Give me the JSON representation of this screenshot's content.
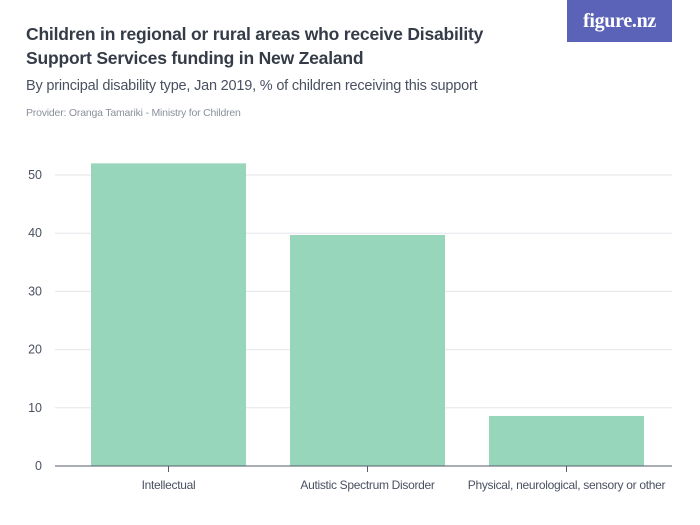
{
  "header": {
    "title": "Children in regional or rural areas who receive Disability Support Services funding in New Zealand",
    "subtitle": "By principal disability type, Jan 2019, % of children receiving this support",
    "provider": "Provider: Oranga Tamariki - Ministry for Children",
    "logo_text": "figure.nz"
  },
  "colors": {
    "bar": "#97d6bb",
    "grid": "#e4e6ea",
    "axis": "#555c68",
    "logo_bg": "#5a63b8"
  },
  "chart_data": {
    "type": "bar",
    "title": "Children in regional or rural areas who receive Disability Support Services funding in New Zealand",
    "subtitle": "By principal disability type, Jan 2019, % of children receiving this support",
    "categories": [
      "Intellectual",
      "Autistic Spectrum Disorder",
      "Physical, neurological, sensory or other"
    ],
    "values": [
      52,
      39.7,
      8.6
    ],
    "xlabel": "",
    "ylabel": "",
    "ylim": [
      0,
      55
    ],
    "yticks": [
      0,
      10,
      20,
      30,
      40,
      50
    ],
    "grid": true,
    "legend": "none"
  }
}
